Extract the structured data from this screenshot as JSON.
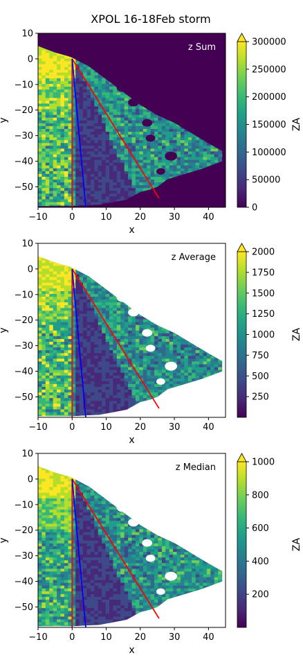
{
  "title": "XPOL 16-18Feb storm",
  "colors": {
    "viridis": [
      "#440154",
      "#482878",
      "#3e4989",
      "#31688e",
      "#26828e",
      "#1f9e89",
      "#35b779",
      "#6ece58",
      "#b5de2b",
      "#fde725"
    ],
    "red_line": "#ff0000",
    "blue_line": "#0000ff",
    "background_sum": "#440154"
  },
  "chart_data": [
    {
      "type": "heatmap",
      "annotation": "z Sum",
      "annotation_color": "#ffffff",
      "xlabel": "x",
      "ylabel": "y",
      "xlim": [
        -10,
        45
      ],
      "ylim": [
        -58,
        10
      ],
      "xticks": [
        "−10",
        "0",
        "10",
        "20",
        "30",
        "40"
      ],
      "yticks": [
        "10",
        "0",
        "−10",
        "−20",
        "−30",
        "−40",
        "−50"
      ],
      "colorbar": {
        "label": "ZA",
        "min": 0,
        "max": 300000,
        "extend": "max",
        "ticks": [
          "300000",
          "250000",
          "200000",
          "150000",
          "100000",
          "50000",
          "0"
        ]
      },
      "masked_background": false,
      "lines": [
        {
          "color": "red",
          "x": [
            0,
            0
          ],
          "y": [
            0,
            -58
          ]
        },
        {
          "color": "red",
          "x": [
            0,
            25.5
          ],
          "y": [
            0,
            -54.5
          ]
        },
        {
          "color": "blue",
          "x": [
            0,
            4
          ],
          "y": [
            0,
            -58
          ]
        }
      ]
    },
    {
      "type": "heatmap",
      "annotation": "z Average",
      "annotation_color": "#000000",
      "xlabel": "x",
      "ylabel": "y",
      "xlim": [
        -10,
        45
      ],
      "ylim": [
        -58,
        10
      ],
      "xticks": [
        "−10",
        "0",
        "10",
        "20",
        "30",
        "40"
      ],
      "yticks": [
        "10",
        "0",
        "−10",
        "−20",
        "−30",
        "−40",
        "−50"
      ],
      "colorbar": {
        "label": "ZA",
        "min": 0,
        "max": 2000,
        "extend": "max",
        "ticks": [
          "2000",
          "1750",
          "1500",
          "1250",
          "1000",
          "750",
          "500",
          "250"
        ]
      },
      "masked_background": true,
      "lines": [
        {
          "color": "red",
          "x": [
            0,
            0
          ],
          "y": [
            0,
            -58
          ]
        },
        {
          "color": "red",
          "x": [
            0,
            25.5
          ],
          "y": [
            0,
            -54.5
          ]
        },
        {
          "color": "blue",
          "x": [
            0,
            4
          ],
          "y": [
            0,
            -58
          ]
        }
      ]
    },
    {
      "type": "heatmap",
      "annotation": "z Median",
      "annotation_color": "#000000",
      "xlabel": "x",
      "ylabel": "y",
      "xlim": [
        -10,
        45
      ],
      "ylim": [
        -58,
        10
      ],
      "xticks": [
        "−10",
        "0",
        "10",
        "20",
        "30",
        "40"
      ],
      "yticks": [
        "10",
        "0",
        "−10",
        "−20",
        "−30",
        "−40",
        "−50"
      ],
      "colorbar": {
        "label": "ZA",
        "min": 0,
        "max": 1000,
        "extend": "max",
        "ticks": [
          "1000",
          "800",
          "600",
          "400",
          "200"
        ]
      },
      "masked_background": true,
      "lines": [
        {
          "color": "red",
          "x": [
            0,
            0
          ],
          "y": [
            0,
            -58
          ]
        },
        {
          "color": "red",
          "x": [
            0,
            25.5
          ],
          "y": [
            0,
            -54.5
          ]
        },
        {
          "color": "blue",
          "x": [
            0,
            4
          ],
          "y": [
            0,
            -58
          ]
        }
      ]
    }
  ]
}
